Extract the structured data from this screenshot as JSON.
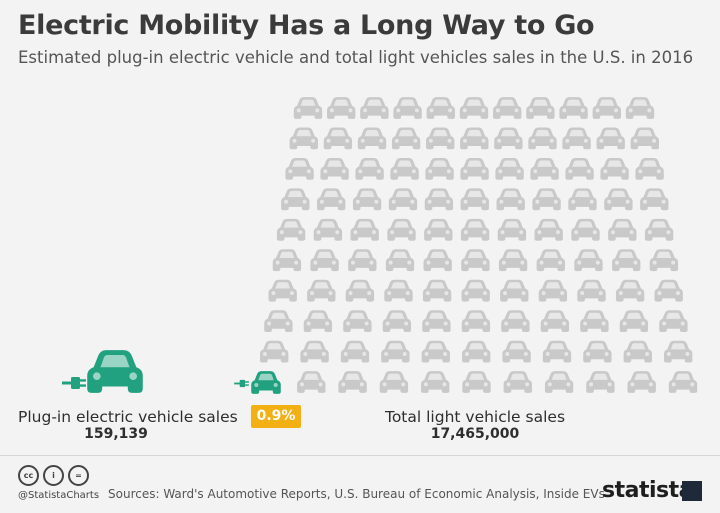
{
  "header": {
    "title": "Electric Mobility Has a Long Way to Go",
    "subtitle": "Estimated plug-in electric vehicle and total light vehicles sales in the U.S. in 2016"
  },
  "chart_data": {
    "type": "pictogram",
    "title": "Electric Mobility Has a Long Way to Go",
    "subtitle": "Estimated plug-in electric vehicle and total light vehicles sales in the U.S. in 2016",
    "categories": [
      "Plug-in electric vehicle sales",
      "Total light vehicle sales"
    ],
    "values": [
      159139,
      17465000
    ],
    "value_labels": [
      "159,139",
      "17,465,000"
    ],
    "share_label": "0.9%",
    "share_percent": 0.9,
    "icon_grid": {
      "rows": 10,
      "columns": 11,
      "highlighted_icons": 1
    },
    "colors": {
      "ev": "#21a17f",
      "total": "#c9c9c9",
      "badge": "#f2b014"
    }
  },
  "footer": {
    "handle": "@StatistaCharts",
    "sources": "Sources: Ward's Automotive Reports, U.S. Bureau of Economic Analysis, Inside EVs",
    "brand": "statista",
    "license_icons": [
      "cc",
      "i",
      "="
    ]
  }
}
